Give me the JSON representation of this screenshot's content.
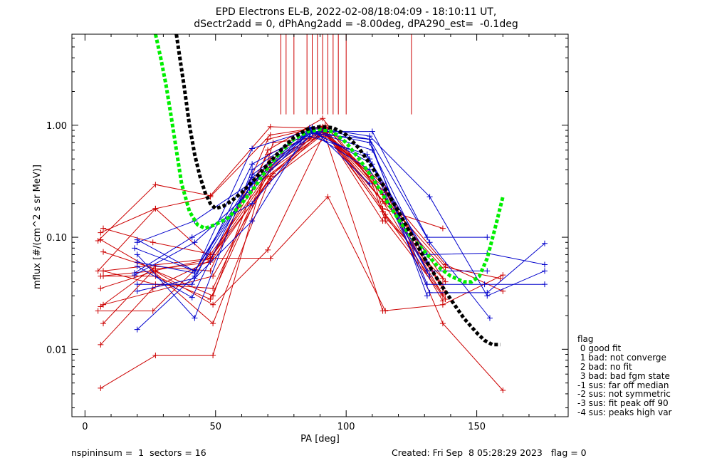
{
  "title": {
    "line1": "EPD Electrons EL-B, 2022-02-08/18:04:09 - 18:10:11 UT,",
    "line2": "dSectr2add = 0, dPhAng2add = -8.00deg, dPA290_est=  -0.1deg"
  },
  "legend": {
    "heading": "flag",
    "items": [
      " 0 good fit",
      " 1 bad: not converge",
      " 2 bad: no fit",
      " 3 bad: bad fgm state",
      "-1 sus: far off median",
      "-2 sus: not symmetric",
      "-3 sus: fit peak off 90",
      "-4 sus: peaks high var"
    ]
  },
  "footer": {
    "left": "nspininsum =  1  sectors = 16",
    "right": "Created: Fri Sep  8 05:28:29 2023   flag = 0"
  },
  "colors": {
    "red": "#cc0000",
    "blue": "#0000cc",
    "green": "#00ee00",
    "black": "#000000"
  },
  "chart_data": {
    "type": "line",
    "xlabel": "PA [deg]",
    "ylabel": "mflux [#/(cm^2 s sr MeV)]",
    "xlim": [
      -5,
      185
    ],
    "ylim": [
      0.0025,
      6.5
    ],
    "yscale": "log",
    "xticks": [
      0,
      50,
      100,
      150
    ],
    "xtick_labels": [
      "0",
      "50",
      "100",
      "150"
    ],
    "yticks": [
      0.01,
      0.1,
      1.0
    ],
    "ytick_labels": [
      "0.01",
      "0.10",
      "1.00"
    ],
    "pa90_markers": {
      "color": "red",
      "top": 6.5,
      "bottom": 1.25,
      "x": [
        75,
        77,
        80,
        85,
        87,
        89,
        91,
        93,
        95,
        97,
        100,
        125
      ]
    },
    "series": [
      {
        "color": "red",
        "x": [
          5,
          27,
          48,
          71,
          90,
          110,
          115,
          137
        ],
        "y": [
          0.093,
          0.295,
          0.235,
          0.97,
          0.94,
          0.35,
          0.15,
          0.043
        ]
      },
      {
        "color": "red",
        "x": [
          5,
          27,
          48,
          71,
          90,
          110,
          115,
          137
        ],
        "y": [
          0.05,
          0.18,
          0.23,
          0.82,
          0.96,
          0.3,
          0.14,
          0.03
        ]
      },
      {
        "color": "red",
        "x": [
          5,
          26,
          48,
          71,
          92,
          114,
          137,
          160
        ],
        "y": [
          0.022,
          0.022,
          0.07,
          0.4,
          0.87,
          0.3,
          0.017,
          0.0043
        ]
      },
      {
        "color": "red",
        "x": [
          7,
          26,
          48,
          71,
          92,
          115,
          138,
          160
        ],
        "y": [
          0.017,
          0.05,
          0.064,
          0.5,
          0.85,
          0.25,
          0.057,
          0.033
        ]
      },
      {
        "color": "red",
        "x": [
          6,
          27,
          48,
          70,
          93,
          115,
          138,
          159
        ],
        "y": [
          0.11,
          0.18,
          0.065,
          0.35,
          0.95,
          0.22,
          0.054,
          0.043
        ]
      },
      {
        "color": "red",
        "x": [
          6,
          27,
          49,
          72,
          92,
          114,
          137,
          160
        ],
        "y": [
          0.0045,
          0.0088,
          0.0088,
          0.7,
          0.8,
          0.022,
          0.025,
          0.046
        ]
      },
      {
        "color": "red",
        "x": [
          6,
          26,
          49,
          70,
          92,
          114,
          137
        ],
        "y": [
          0.045,
          0.05,
          0.017,
          0.3,
          0.95,
          0.18,
          0.12
        ]
      },
      {
        "color": "red",
        "x": [
          7,
          27,
          48,
          72,
          92,
          115,
          138
        ],
        "y": [
          0.074,
          0.052,
          0.06,
          0.37,
          0.86,
          0.2,
          0.05
        ]
      },
      {
        "color": "red",
        "x": [
          6,
          27,
          49,
          70,
          91,
          115,
          138
        ],
        "y": [
          0.035,
          0.05,
          0.03,
          0.6,
          1.15,
          0.22,
          0.028
        ]
      },
      {
        "color": "red",
        "x": [
          7,
          27,
          48,
          71,
          91,
          115,
          138
        ],
        "y": [
          0.045,
          0.045,
          0.028,
          0.42,
          0.9,
          0.25,
          0.04
        ]
      },
      {
        "color": "red",
        "x": [
          7,
          26,
          49,
          71,
          93,
          115,
          137
        ],
        "y": [
          0.12,
          0.09,
          0.07,
          0.33,
          0.8,
          0.27,
          0.035
        ]
      },
      {
        "color": "red",
        "x": [
          6,
          26,
          48,
          70,
          91,
          114,
          137
        ],
        "y": [
          0.011,
          0.035,
          0.062,
          0.55,
          0.88,
          0.21,
          0.027
        ]
      },
      {
        "color": "red",
        "x": [
          6,
          27,
          48,
          70,
          92,
          114,
          138
        ],
        "y": [
          0.024,
          0.055,
          0.05,
          0.75,
          1.0,
          0.24,
          0.032
        ]
      },
      {
        "color": "red",
        "x": [
          7,
          27,
          49,
          71,
          91,
          115,
          137
        ],
        "y": [
          0.05,
          0.038,
          0.035,
          0.45,
          0.92,
          0.16,
          0.038
        ]
      },
      {
        "color": "red",
        "x": [
          7,
          49,
          71,
          93,
          115
        ],
        "y": [
          0.05,
          0.065,
          0.065,
          0.23,
          0.022
        ]
      },
      {
        "color": "red",
        "x": [
          6,
          49,
          70,
          92,
          114
        ],
        "y": [
          0.095,
          0.025,
          0.077,
          0.88,
          0.14
        ]
      },
      {
        "color": "red",
        "x": [
          7,
          49,
          71,
          91,
          114,
          137
        ],
        "y": [
          0.025,
          0.045,
          0.35,
          0.97,
          0.17,
          0.031
        ]
      },
      {
        "color": "blue",
        "x": [
          20,
          42,
          64,
          87,
          109,
          132,
          154,
          176
        ],
        "y": [
          0.015,
          0.045,
          0.3,
          0.96,
          0.8,
          0.23,
          0.03,
          0.05
        ]
      },
      {
        "color": "blue",
        "x": [
          20,
          42,
          64,
          87,
          110,
          131,
          154
        ],
        "y": [
          0.09,
          0.14,
          0.31,
          0.88,
          0.88,
          0.1,
          0.1
        ]
      },
      {
        "color": "blue",
        "x": [
          19,
          41,
          64,
          87,
          109,
          132,
          154,
          176
        ],
        "y": [
          0.048,
          0.1,
          0.2,
          0.86,
          0.5,
          0.032,
          0.032,
          0.088
        ]
      },
      {
        "color": "blue",
        "x": [
          20,
          42,
          64,
          86,
          109,
          131,
          153,
          176
        ],
        "y": [
          0.06,
          0.048,
          0.62,
          0.9,
          0.7,
          0.038,
          0.038,
          0.038
        ]
      },
      {
        "color": "blue",
        "x": [
          20,
          42,
          64,
          86,
          109,
          132,
          155
        ],
        "y": [
          0.033,
          0.043,
          0.14,
          0.95,
          0.75,
          0.09,
          0.019
        ]
      },
      {
        "color": "blue",
        "x": [
          20,
          41,
          64,
          87,
          110,
          131,
          154,
          176
        ],
        "y": [
          0.038,
          0.038,
          0.45,
          0.89,
          0.45,
          0.07,
          0.072,
          0.057
        ]
      },
      {
        "color": "blue",
        "x": [
          19,
          42,
          63,
          86,
          108,
          131,
          154
        ],
        "y": [
          0.08,
          0.05,
          0.28,
          0.8,
          0.55,
          0.05,
          0.05
        ]
      },
      {
        "color": "blue",
        "x": [
          20,
          42,
          64,
          86,
          109,
          131
        ],
        "y": [
          0.095,
          0.05,
          0.34,
          0.85,
          0.75,
          0.03
        ]
      },
      {
        "color": "blue",
        "x": [
          20,
          41,
          64,
          86,
          109,
          132
        ],
        "y": [
          0.055,
          0.029,
          0.36,
          0.87,
          0.4,
          0.045
        ]
      },
      {
        "color": "blue",
        "x": [
          20,
          42,
          64,
          86,
          110,
          131
        ],
        "y": [
          0.07,
          0.019,
          0.4,
          0.9,
          0.6,
          0.06
        ]
      },
      {
        "color": "blue",
        "x": [
          19,
          42,
          63,
          87,
          109
        ],
        "y": [
          0.046,
          0.09,
          0.25,
          0.94,
          0.3
        ]
      },
      {
        "color": "green",
        "dashed": true,
        "x": [
          27,
          29,
          31,
          33,
          35,
          37,
          40,
          43,
          46,
          50,
          55,
          60,
          65,
          70,
          75,
          80,
          85,
          90,
          95,
          100,
          105,
          110,
          115,
          120,
          125,
          130,
          135,
          140,
          145,
          148,
          151,
          154,
          157,
          160
        ],
        "y": [
          6.5,
          4.0,
          2.3,
          1.2,
          0.6,
          0.3,
          0.17,
          0.13,
          0.12,
          0.13,
          0.15,
          0.2,
          0.28,
          0.42,
          0.58,
          0.75,
          0.87,
          0.92,
          0.87,
          0.7,
          0.5,
          0.34,
          0.22,
          0.145,
          0.1,
          0.075,
          0.055,
          0.045,
          0.04,
          0.04,
          0.045,
          0.065,
          0.12,
          0.23
        ]
      },
      {
        "color": "black",
        "dashed": true,
        "x": [
          35,
          36,
          38,
          40,
          42,
          44,
          46,
          48,
          50,
          53,
          56,
          60,
          65,
          70,
          75,
          80,
          85,
          90,
          95,
          100,
          105,
          110,
          115,
          120,
          125,
          130,
          135,
          140,
          145,
          150,
          153,
          156,
          159
        ],
        "y": [
          6.5,
          4.5,
          2.2,
          1.0,
          0.55,
          0.35,
          0.25,
          0.2,
          0.18,
          0.19,
          0.21,
          0.25,
          0.33,
          0.45,
          0.6,
          0.78,
          0.92,
          0.97,
          0.95,
          0.82,
          0.62,
          0.42,
          0.27,
          0.17,
          0.105,
          0.065,
          0.042,
          0.028,
          0.019,
          0.014,
          0.012,
          0.011,
          0.011
        ]
      }
    ]
  }
}
